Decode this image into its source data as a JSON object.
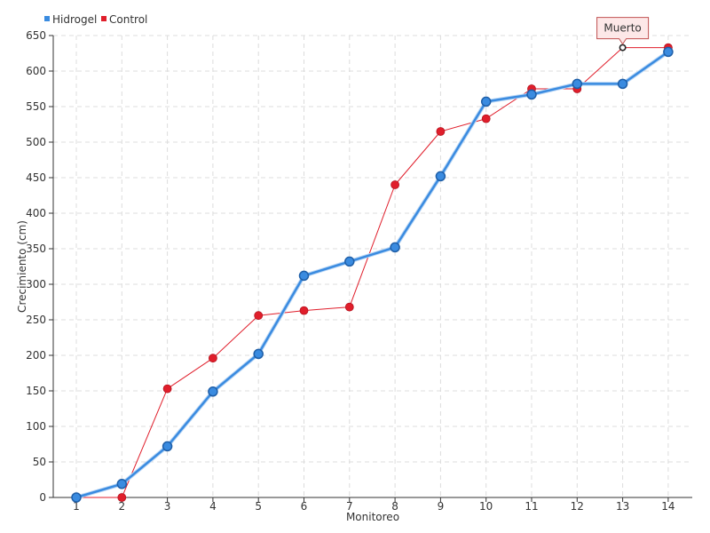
{
  "chart_data": {
    "type": "line",
    "title": "",
    "xlabel": "Monitoreo",
    "ylabel": "Crecimiento (cm)",
    "categories": [
      "1",
      "2",
      "3",
      "4",
      "5",
      "6",
      "7",
      "8",
      "9",
      "10",
      "11",
      "12",
      "13",
      "14"
    ],
    "ylim": [
      0,
      650
    ],
    "yticks": [
      0,
      50,
      100,
      150,
      200,
      250,
      300,
      350,
      400,
      450,
      500,
      550,
      600,
      650
    ],
    "grid": true,
    "legend_position": "top-left",
    "series": [
      {
        "name": "Hidrogel",
        "color": "#3a8be0",
        "values": [
          0,
          19,
          72,
          149,
          202,
          312,
          332,
          352,
          452,
          557,
          567,
          582,
          582,
          627
        ]
      },
      {
        "name": "Control",
        "color": "#e01e2b",
        "values": [
          0,
          0,
          153,
          196,
          256,
          263,
          268,
          440,
          515,
          533,
          575,
          575,
          633,
          633
        ]
      }
    ],
    "annotations": [
      {
        "text": "Muerto",
        "series": "Control",
        "category": "13"
      }
    ]
  }
}
